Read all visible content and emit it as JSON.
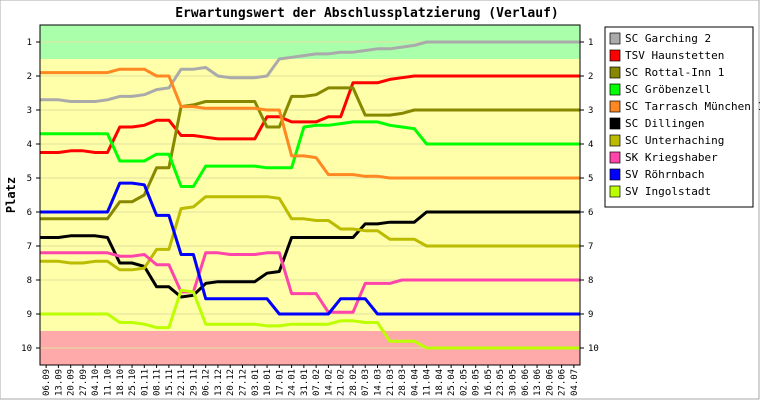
{
  "chart_data": {
    "type": "line",
    "title": "Erwartungswert der Abschlussplatzierung (Verlauf)",
    "ylabel": "Platz",
    "xlabel": "",
    "ylim": [
      10.5,
      0.5
    ],
    "yticks": [
      1,
      2,
      3,
      4,
      5,
      6,
      7,
      8,
      9,
      10
    ],
    "zones": [
      {
        "from": 0.5,
        "to": 1.5,
        "color": "#aaffaa"
      },
      {
        "from": 1.5,
        "to": 9.5,
        "color": "#ffffaa"
      },
      {
        "from": 9.5,
        "to": 10.5,
        "color": "#ffaaaa"
      }
    ],
    "grid": "horizontal",
    "legend_position": "right",
    "categories": [
      "06.09",
      "13.09",
      "20.09",
      "27.09",
      "04.10",
      "11.10",
      "18.10",
      "25.10",
      "01.11",
      "08.11",
      "15.11",
      "22.11",
      "29.11",
      "06.12",
      "13.12",
      "20.12",
      "27.12",
      "03.01",
      "10.01",
      "17.01",
      "24.01",
      "31.01",
      "07.02",
      "14.02",
      "21.02",
      "28.02",
      "07.03",
      "14.03",
      "21.03",
      "28.03",
      "04.04",
      "11.04",
      "18.04",
      "25.04",
      "02.05",
      "09.05",
      "16.05",
      "23.05",
      "30.05",
      "06.06",
      "13.06",
      "20.06",
      "27.06",
      "04.07"
    ],
    "series": [
      {
        "name": "SC Garching 2",
        "color": "#aaaaaa",
        "values": [
          2.7,
          2.7,
          2.75,
          2.75,
          2.75,
          2.7,
          2.6,
          2.6,
          2.55,
          2.4,
          2.35,
          1.8,
          1.8,
          1.75,
          2.0,
          2.05,
          2.05,
          2.05,
          2.0,
          1.5,
          1.45,
          1.4,
          1.35,
          1.35,
          1.3,
          1.3,
          1.25,
          1.2,
          1.2,
          1.15,
          1.1,
          1.0,
          1.0,
          1.0,
          1.0,
          1.0,
          1.0,
          1.0,
          1.0,
          1.0,
          1.0,
          1.0,
          1.0,
          1.0
        ]
      },
      {
        "name": "TSV Haunstetten",
        "color": "#ff0000",
        "values": [
          4.25,
          4.25,
          4.2,
          4.2,
          4.25,
          4.25,
          3.5,
          3.5,
          3.45,
          3.3,
          3.3,
          3.75,
          3.75,
          3.8,
          3.85,
          3.85,
          3.85,
          3.85,
          3.2,
          3.2,
          3.35,
          3.35,
          3.35,
          3.2,
          3.2,
          2.2,
          2.2,
          2.2,
          2.1,
          2.05,
          2.0,
          2.0,
          2.0,
          2.0,
          2.0,
          2.0,
          2.0,
          2.0,
          2.0,
          2.0,
          2.0,
          2.0,
          2.0,
          2.0
        ]
      },
      {
        "name": "SC Rottal-Inn 1",
        "color": "#888800",
        "values": [
          6.2,
          6.2,
          6.2,
          6.2,
          6.2,
          6.2,
          5.7,
          5.7,
          5.5,
          4.7,
          4.7,
          2.9,
          2.85,
          2.75,
          2.75,
          2.75,
          2.75,
          2.75,
          3.5,
          3.5,
          2.6,
          2.6,
          2.55,
          2.35,
          2.35,
          2.35,
          3.15,
          3.15,
          3.15,
          3.1,
          3.0,
          3.0,
          3.0,
          3.0,
          3.0,
          3.0,
          3.0,
          3.0,
          3.0,
          3.0,
          3.0,
          3.0,
          3.0,
          3.0
        ]
      },
      {
        "name": "SC Gröbenzell",
        "color": "#00ff00",
        "values": [
          3.7,
          3.7,
          3.7,
          3.7,
          3.7,
          3.7,
          4.5,
          4.5,
          4.5,
          4.3,
          4.3,
          5.25,
          5.25,
          4.65,
          4.65,
          4.65,
          4.65,
          4.65,
          4.7,
          4.7,
          4.7,
          3.5,
          3.45,
          3.45,
          3.4,
          3.35,
          3.35,
          3.35,
          3.45,
          3.5,
          3.55,
          4.0,
          4.0,
          4.0,
          4.0,
          4.0,
          4.0,
          4.0,
          4.0,
          4.0,
          4.0,
          4.0,
          4.0,
          4.0
        ]
      },
      {
        "name": "SC Tarrasch München 1",
        "color": "#ff8822",
        "values": [
          1.9,
          1.9,
          1.9,
          1.9,
          1.9,
          1.9,
          1.8,
          1.8,
          1.8,
          2.0,
          2.0,
          2.9,
          2.9,
          2.95,
          2.95,
          2.95,
          2.95,
          2.95,
          3.0,
          3.0,
          4.35,
          4.35,
          4.4,
          4.9,
          4.9,
          4.9,
          4.95,
          4.95,
          5.0,
          5.0,
          5.0,
          5.0,
          5.0,
          5.0,
          5.0,
          5.0,
          5.0,
          5.0,
          5.0,
          5.0,
          5.0,
          5.0,
          5.0,
          5.0
        ]
      },
      {
        "name": "SC Dillingen",
        "color": "#000000",
        "values": [
          6.75,
          6.75,
          6.7,
          6.7,
          6.7,
          6.75,
          7.5,
          7.5,
          7.6,
          8.2,
          8.2,
          8.5,
          8.45,
          8.1,
          8.05,
          8.05,
          8.05,
          8.05,
          7.8,
          7.75,
          6.75,
          6.75,
          6.75,
          6.75,
          6.75,
          6.75,
          6.35,
          6.35,
          6.3,
          6.3,
          6.3,
          6.0,
          6.0,
          6.0,
          6.0,
          6.0,
          6.0,
          6.0,
          6.0,
          6.0,
          6.0,
          6.0,
          6.0,
          6.0
        ]
      },
      {
        "name": "SC Unterhaching",
        "color": "#bbbb00",
        "values": [
          7.45,
          7.45,
          7.5,
          7.5,
          7.45,
          7.45,
          7.7,
          7.7,
          7.65,
          7.1,
          7.1,
          5.9,
          5.85,
          5.55,
          5.55,
          5.55,
          5.55,
          5.55,
          5.55,
          5.6,
          6.2,
          6.2,
          6.25,
          6.25,
          6.5,
          6.5,
          6.55,
          6.55,
          6.8,
          6.8,
          6.8,
          7.0,
          7.0,
          7.0,
          7.0,
          7.0,
          7.0,
          7.0,
          7.0,
          7.0,
          7.0,
          7.0,
          7.0,
          7.0
        ]
      },
      {
        "name": "SK Kriegshaber",
        "color": "#ff44aa",
        "values": [
          7.2,
          7.2,
          7.2,
          7.2,
          7.2,
          7.2,
          7.3,
          7.3,
          7.25,
          7.55,
          7.55,
          8.35,
          8.35,
          7.2,
          7.2,
          7.25,
          7.25,
          7.25,
          7.2,
          7.2,
          8.4,
          8.4,
          8.4,
          8.95,
          8.95,
          8.95,
          8.1,
          8.1,
          8.1,
          8.0,
          8.0,
          8.0,
          8.0,
          8.0,
          8.0,
          8.0,
          8.0,
          8.0,
          8.0,
          8.0,
          8.0,
          8.0,
          8.0,
          8.0
        ]
      },
      {
        "name": "SV Röhrnbach",
        "color": "#0000ff",
        "values": [
          6.0,
          6.0,
          6.0,
          6.0,
          6.0,
          6.0,
          5.15,
          5.15,
          5.2,
          6.1,
          6.1,
          7.25,
          7.25,
          8.55,
          8.55,
          8.55,
          8.55,
          8.55,
          8.55,
          9.0,
          9.0,
          9.0,
          9.0,
          9.0,
          8.55,
          8.55,
          8.55,
          9.0,
          9.0,
          9.0,
          9.0,
          9.0,
          9.0,
          9.0,
          9.0,
          9.0,
          9.0,
          9.0,
          9.0,
          9.0,
          9.0,
          9.0,
          9.0,
          9.0
        ]
      },
      {
        "name": "SV Ingolstadt",
        "color": "#bbff00",
        "values": [
          9.0,
          9.0,
          9.0,
          9.0,
          9.0,
          9.0,
          9.25,
          9.25,
          9.3,
          9.4,
          9.4,
          8.3,
          8.35,
          9.3,
          9.3,
          9.3,
          9.3,
          9.3,
          9.35,
          9.35,
          9.3,
          9.3,
          9.3,
          9.3,
          9.2,
          9.2,
          9.25,
          9.25,
          9.8,
          9.8,
          9.8,
          10.0,
          10.0,
          10.0,
          10.0,
          10.0,
          10.0,
          10.0,
          10.0,
          10.0,
          10.0,
          10.0,
          10.0,
          10.0
        ]
      }
    ]
  }
}
